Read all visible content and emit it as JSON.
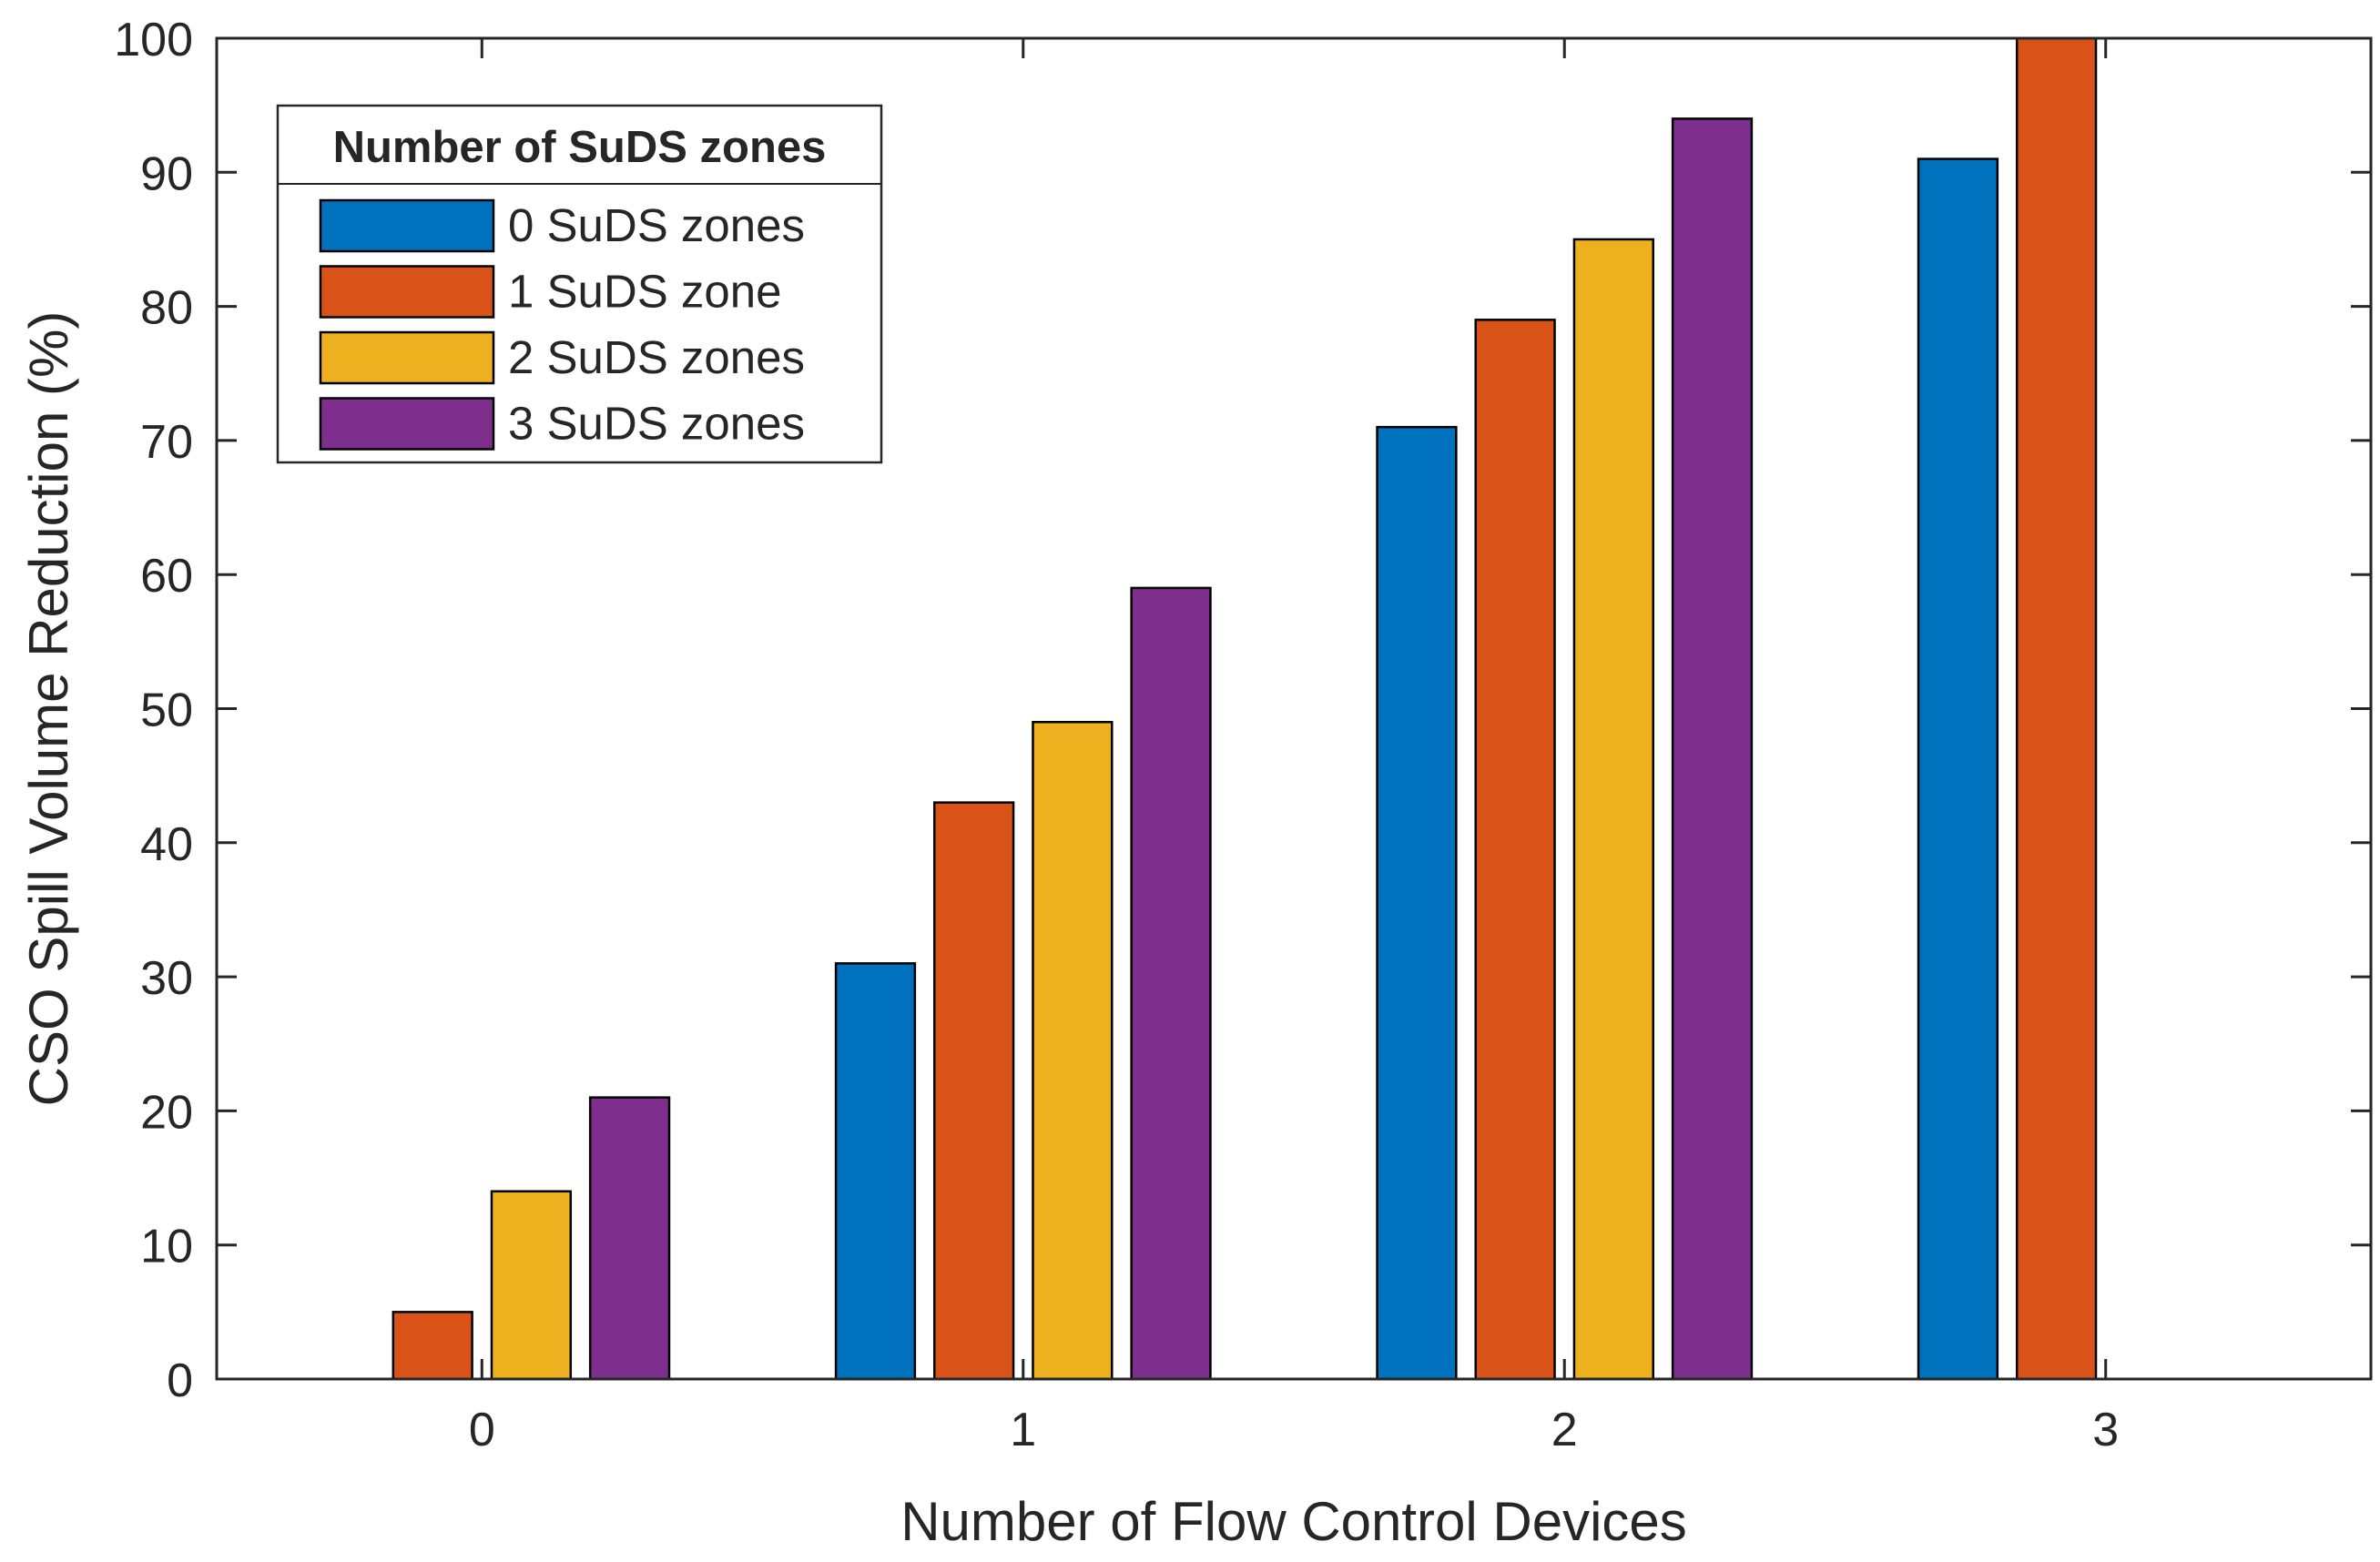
{
  "chart_data": {
    "type": "bar",
    "title": "",
    "xlabel": "Number of Flow Control Devices",
    "ylabel": "CSO Spill Volume Reduction (%)",
    "categories": [
      "0",
      "1",
      "2",
      "3"
    ],
    "ylim": [
      0,
      100
    ],
    "yticks": [
      "0",
      "10",
      "20",
      "30",
      "40",
      "50",
      "60",
      "70",
      "80",
      "90",
      "100"
    ],
    "grid": false,
    "legend": {
      "title": "Number of SuDS zones",
      "position": "top-left"
    },
    "series": [
      {
        "name": "0 SuDS zones",
        "color": "#0072BD",
        "values": [
          0,
          31,
          71,
          91
        ]
      },
      {
        "name": "1 SuDS zone",
        "color": "#D95319",
        "values": [
          5,
          43,
          79,
          100
        ]
      },
      {
        "name": "2 SuDS zones",
        "color": "#EDB120",
        "values": [
          14,
          49,
          85,
          0
        ]
      },
      {
        "name": "3 SuDS zones",
        "color": "#7E2F8E",
        "values": [
          21,
          59,
          94,
          0
        ]
      }
    ]
  }
}
